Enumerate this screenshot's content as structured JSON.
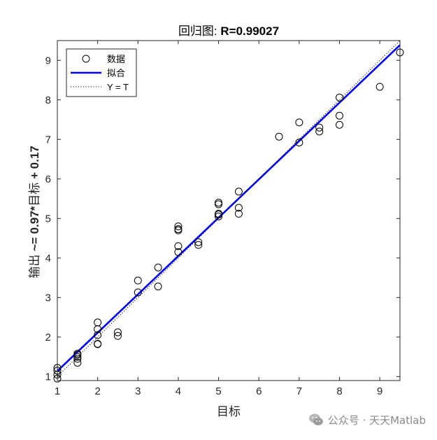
{
  "chart_data": {
    "type": "scatter",
    "title": "回归图: R=0.99027",
    "title_prefix": "回归图: ",
    "title_bold": "R=0.99027",
    "xlabel": "目标",
    "ylabel": "输出 ~= 0.97*目标 + 0.17",
    "ylabel_prefix": "输出 ",
    "ylabel_formula_1": "~= 0.97*",
    "ylabel_mid": "目标",
    "ylabel_formula_2": " + 0.17",
    "xlim": [
      1,
      9.5
    ],
    "ylim": [
      0.9,
      9.5
    ],
    "xticks": [
      1,
      2,
      3,
      4,
      5,
      6,
      7,
      8,
      9
    ],
    "yticks": [
      1,
      2,
      3,
      4,
      5,
      6,
      7,
      8,
      9
    ],
    "grid": false,
    "legend_position": "top-left",
    "series": [
      {
        "name": "数据",
        "kind": "points",
        "marker": "open-circle",
        "color": "#000000",
        "x": [
          1,
          1,
          1,
          1,
          1.5,
          1.5,
          1.5,
          1.5,
          1.5,
          2,
          2,
          2,
          2,
          2,
          2.5,
          2.5,
          3,
          3,
          3.5,
          3.5,
          4,
          4,
          4,
          4,
          4,
          4.5,
          4.5,
          5,
          5,
          5,
          5,
          5,
          5.5,
          5.5,
          5.5,
          6.5,
          7,
          7,
          7.5,
          7.5,
          8,
          8,
          8,
          9,
          9.5
        ],
        "y": [
          0.95,
          1.05,
          1.15,
          1.22,
          1.35,
          1.45,
          1.5,
          1.55,
          1.58,
          1.82,
          1.83,
          2.05,
          2.2,
          2.37,
          2.03,
          2.12,
          3.13,
          3.43,
          3.28,
          3.76,
          4.15,
          4.3,
          4.7,
          4.73,
          4.8,
          4.33,
          4.4,
          5.05,
          5.12,
          5.36,
          5.4,
          5.1,
          5.12,
          5.27,
          5.68,
          7.07,
          6.92,
          7.43,
          7.2,
          7.3,
          7.37,
          7.6,
          8.06,
          8.33,
          9.2
        ]
      },
      {
        "name": "拟合",
        "kind": "line",
        "color": "#0000ff",
        "slope": 0.97,
        "intercept": 0.17
      },
      {
        "name": "Y = T",
        "kind": "line",
        "style": "dotted",
        "color": "#000000",
        "slope": 1,
        "intercept": 0
      }
    ]
  },
  "watermark": {
    "text": "公众号 · 天天Matlab"
  }
}
